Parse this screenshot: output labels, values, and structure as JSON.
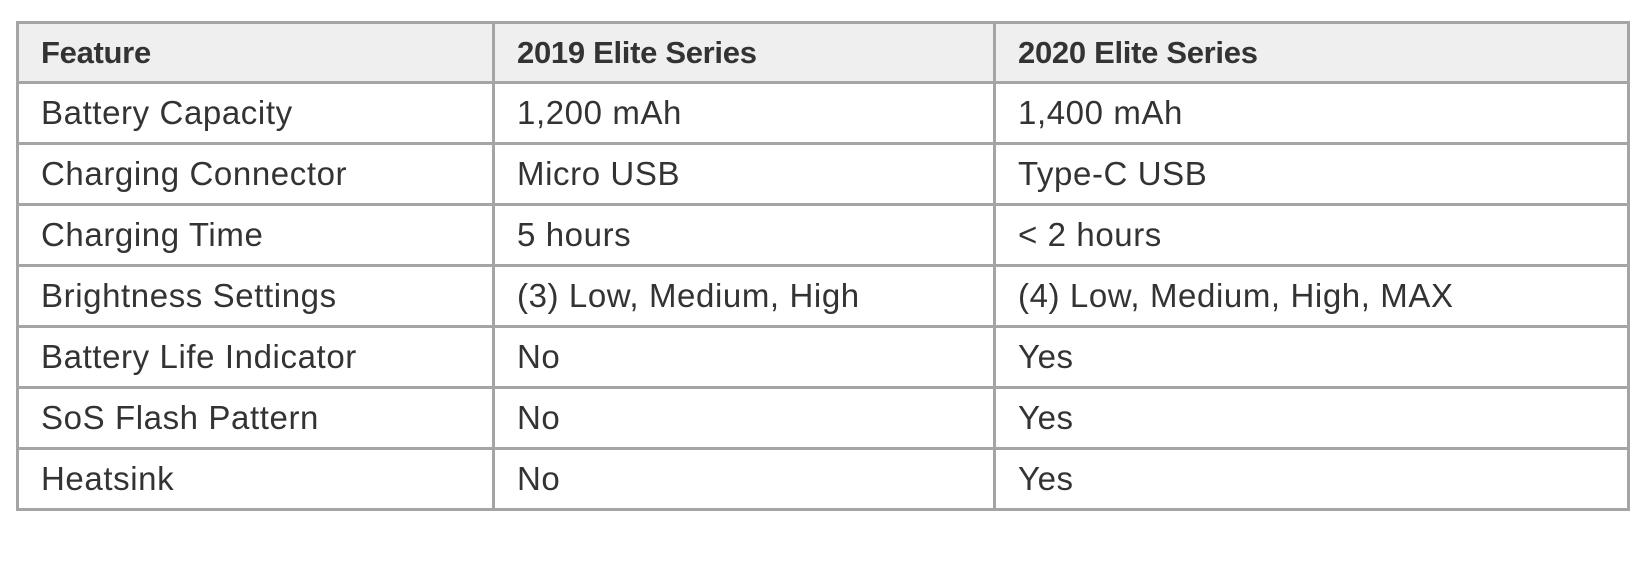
{
  "table": {
    "headers": [
      "Feature",
      "2019 Elite Series",
      "2020 Elite Series"
    ],
    "rows": [
      [
        "Battery Capacity",
        "1,200 mAh",
        "1,400 mAh"
      ],
      [
        "Charging Connector",
        "Micro USB",
        "Type-C USB"
      ],
      [
        "Charging Time",
        "5 hours",
        "< 2 hours"
      ],
      [
        "Brightness Settings",
        "(3) Low, Medium, High",
        "(4) Low, Medium, High, MAX"
      ],
      [
        "Battery Life Indicator",
        "No",
        "Yes"
      ],
      [
        "SoS Flash Pattern",
        "No",
        "Yes"
      ],
      [
        "Heatsink",
        "No",
        "Yes"
      ]
    ]
  },
  "colors": {
    "header_background": "#efefef",
    "border": "#a5a5a5",
    "text": "#333333"
  }
}
